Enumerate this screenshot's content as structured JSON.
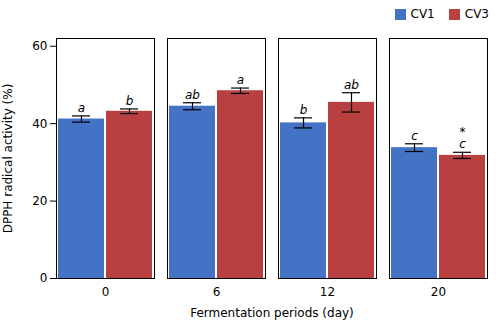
{
  "chart_data": {
    "type": "bar",
    "categories": [
      "0",
      "6",
      "12",
      "20"
    ],
    "series": [
      {
        "name": "CV1",
        "color": "#4472C4",
        "values": [
          41.2,
          44.5,
          40.2,
          33.8
        ],
        "errors": [
          0.8,
          0.9,
          1.3,
          1.0
        ],
        "annotations": [
          "a",
          "ab",
          "b",
          "c"
        ]
      },
      {
        "name": "CV3",
        "color": "#B94040",
        "values": [
          43.2,
          48.5,
          45.5,
          31.8
        ],
        "errors": [
          0.6,
          0.7,
          2.5,
          0.8
        ],
        "annotations": [
          "b",
          "a",
          "ab",
          "*\nc"
        ]
      }
    ],
    "xlabel": "Fermentation periods (day)",
    "ylabel": "DPPH radical activity (%)",
    "ylim": [
      0,
      62
    ],
    "yticks": [
      0,
      20,
      40,
      60
    ],
    "legend": "upper right",
    "grid": false
  }
}
